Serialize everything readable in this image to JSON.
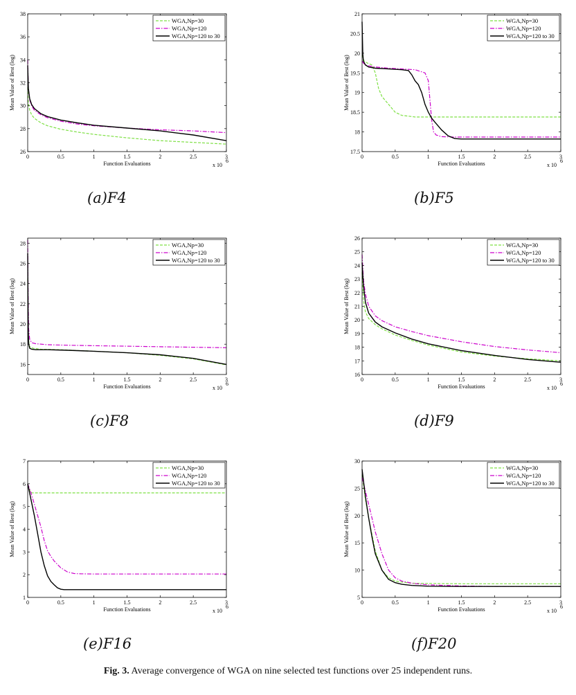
{
  "figure_caption": {
    "label": "Fig. 3.",
    "text": "Average convergence of WGA on nine selected test functions over 25 independent runs."
  },
  "colors": {
    "np30": "#7ee044",
    "np120": "#cc00cc",
    "np120to30": "#000000"
  },
  "chart_data": [
    {
      "id": "a",
      "type": "line",
      "caption": "(a)F4",
      "xlabel": "Function Evaluations",
      "ylabel": "Mean Value of Best (log)",
      "x_multiplier": "x 10",
      "x_exponent": "6",
      "xlim": [
        0,
        3
      ],
      "ylim": [
        26,
        38
      ],
      "xticks": [
        "0",
        "0.5",
        "1",
        "1.5",
        "2",
        "2.5",
        "3"
      ],
      "yticks": [
        "26",
        "28",
        "30",
        "32",
        "34",
        "36",
        "38"
      ],
      "legend": [
        "WGA,Np=30",
        "WGA,Np=120",
        "WGA,Np=120 to 30"
      ],
      "series": [
        {
          "name": "WGA,Np=30",
          "x": [
            0,
            0.01,
            0.03,
            0.06,
            0.1,
            0.2,
            0.3,
            0.5,
            0.75,
            1,
            1.5,
            2,
            2.5,
            3
          ],
          "y": [
            31.6,
            30.2,
            29.6,
            29.2,
            28.9,
            28.5,
            28.25,
            27.95,
            27.7,
            27.5,
            27.2,
            26.95,
            26.8,
            26.65
          ]
        },
        {
          "name": "WGA,Np=120",
          "x": [
            0,
            0.01,
            0.03,
            0.06,
            0.1,
            0.2,
            0.3,
            0.5,
            0.75,
            1,
            1.5,
            2,
            2.5,
            3
          ],
          "y": [
            34.0,
            31.5,
            30.5,
            30.0,
            29.6,
            29.2,
            28.95,
            28.65,
            28.4,
            28.25,
            28.05,
            27.9,
            27.8,
            27.65
          ]
        },
        {
          "name": "WGA,Np=120 to 30",
          "x": [
            0,
            0.01,
            0.03,
            0.06,
            0.1,
            0.2,
            0.3,
            0.5,
            0.75,
            1,
            1.5,
            2,
            2.5,
            3
          ],
          "y": [
            33.5,
            31.5,
            30.6,
            30.1,
            29.75,
            29.3,
            29.05,
            28.75,
            28.5,
            28.3,
            28.05,
            27.8,
            27.45,
            26.95
          ]
        }
      ]
    },
    {
      "id": "b",
      "type": "line",
      "caption": "(b)F5",
      "xlabel": "Function Evaluations",
      "ylabel": "Mean Value of Best (log)",
      "x_multiplier": "x 10",
      "x_exponent": "6",
      "xlim": [
        0,
        3
      ],
      "ylim": [
        17.5,
        21
      ],
      "xticks": [
        "0",
        "0.5",
        "1",
        "1.5",
        "2",
        "2.5",
        "3"
      ],
      "yticks": [
        "17.5",
        "18",
        "18.5",
        "19",
        "19.5",
        "20",
        "20.5",
        "21"
      ],
      "legend": [
        "WGA,Np=30",
        "WGA,Np=120",
        "WGA,Np=120 to 30"
      ],
      "series": [
        {
          "name": "WGA,Np=30",
          "x": [
            0,
            0.03,
            0.08,
            0.15,
            0.2,
            0.25,
            0.3,
            0.4,
            0.5,
            0.6,
            0.7,
            0.8,
            1.0,
            3
          ],
          "y": [
            19.95,
            19.8,
            19.75,
            19.7,
            19.5,
            19.1,
            18.9,
            18.7,
            18.5,
            18.42,
            18.4,
            18.38,
            18.38,
            18.38
          ]
        },
        {
          "name": "WGA,Np=120",
          "x": [
            0,
            0.02,
            0.05,
            0.1,
            0.2,
            0.4,
            0.6,
            0.8,
            0.95,
            1.0,
            1.02,
            1.05,
            1.08,
            1.12,
            1.2,
            1.4,
            3
          ],
          "y": [
            19.8,
            19.75,
            19.7,
            19.68,
            19.65,
            19.62,
            19.6,
            19.58,
            19.5,
            19.3,
            18.9,
            18.3,
            18.0,
            17.92,
            17.88,
            17.87,
            17.87
          ]
        },
        {
          "name": "WGA,Np=120 to 30",
          "x": [
            0,
            0.01,
            0.02,
            0.05,
            0.1,
            0.2,
            0.4,
            0.6,
            0.7,
            0.75,
            0.8,
            0.85,
            0.9,
            0.95,
            1.0,
            1.05,
            1.1,
            1.2,
            1.3,
            1.4,
            1.5,
            3
          ],
          "y": [
            20.8,
            20.0,
            19.8,
            19.7,
            19.65,
            19.62,
            19.6,
            19.58,
            19.56,
            19.45,
            19.3,
            19.2,
            19.0,
            18.7,
            18.5,
            18.35,
            18.25,
            18.05,
            17.9,
            17.83,
            17.82,
            17.82
          ]
        }
      ]
    },
    {
      "id": "c",
      "type": "line",
      "caption": "(c)F8",
      "xlabel": "Function Evaluations",
      "ylabel": "Mean Value of Best (log)",
      "x_multiplier": "x 10",
      "x_exponent": "6",
      "xlim": [
        0,
        3
      ],
      "ylim": [
        15,
        28.5
      ],
      "xticks": [
        "0",
        "0.5",
        "1",
        "1.5",
        "2",
        "2.5",
        "3"
      ],
      "yticks": [
        "16",
        "18",
        "20",
        "22",
        "24",
        "26",
        "28"
      ],
      "legend": [
        "WGA,Np=30",
        "WGA,Np=120",
        "WGA,Np=120 to 30"
      ],
      "series": [
        {
          "name": "WGA,Np=30",
          "x": [
            0,
            0.005,
            0.01,
            0.02,
            0.04,
            0.08,
            0.2,
            0.5,
            1,
            1.5,
            2,
            2.5,
            3
          ],
          "y": [
            24.5,
            21.0,
            19.0,
            17.9,
            17.7,
            17.6,
            17.5,
            17.45,
            17.3,
            17.15,
            16.9,
            16.55,
            15.95
          ]
        },
        {
          "name": "WGA,Np=120",
          "x": [
            0,
            0.004,
            0.008,
            0.015,
            0.03,
            0.06,
            0.12,
            0.3,
            0.6,
            1,
            1.5,
            2,
            2.5,
            3
          ],
          "y": [
            28.3,
            25.0,
            22.0,
            19.5,
            18.5,
            18.15,
            18.05,
            17.95,
            17.9,
            17.85,
            17.8,
            17.75,
            17.7,
            17.65
          ]
        },
        {
          "name": "WGA,Np=120 to 30",
          "x": [
            0,
            0.004,
            0.008,
            0.015,
            0.03,
            0.06,
            0.12,
            0.3,
            0.6,
            1,
            1.5,
            2,
            2.5,
            3
          ],
          "y": [
            27.0,
            23.0,
            19.5,
            18.0,
            17.6,
            17.5,
            17.45,
            17.45,
            17.4,
            17.3,
            17.15,
            16.95,
            16.6,
            16.0
          ]
        }
      ]
    },
    {
      "id": "d",
      "type": "line",
      "caption": "(d)F9",
      "xlabel": "Function Evaluations",
      "ylabel": "Mean Value of Best (log)",
      "x_multiplier": "x 10",
      "x_exponent": "6",
      "xlim": [
        0,
        3
      ],
      "ylim": [
        16,
        26
      ],
      "xticks": [
        "0",
        "0.5",
        "1",
        "1.5",
        "2",
        "2.5",
        "3"
      ],
      "yticks": [
        "16",
        "17",
        "18",
        "19",
        "20",
        "21",
        "22",
        "23",
        "24",
        "25",
        "26"
      ],
      "legend": [
        "WGA,Np=30",
        "WGA,Np=120",
        "WGA,Np=120 to 30"
      ],
      "series": [
        {
          "name": "WGA,Np=30",
          "x": [
            0,
            0.02,
            0.05,
            0.1,
            0.2,
            0.3,
            0.5,
            0.75,
            1,
            1.5,
            2,
            2.5,
            3
          ],
          "y": [
            23.5,
            21.5,
            20.6,
            20.1,
            19.65,
            19.35,
            18.9,
            18.5,
            18.15,
            17.65,
            17.35,
            17.15,
            17.0
          ]
        },
        {
          "name": "WGA,Np=120",
          "x": [
            0,
            0.02,
            0.05,
            0.1,
            0.2,
            0.3,
            0.5,
            0.75,
            1,
            1.5,
            2,
            2.5,
            3
          ],
          "y": [
            24.8,
            23.0,
            21.9,
            21.0,
            20.3,
            19.95,
            19.5,
            19.15,
            18.85,
            18.4,
            18.05,
            17.8,
            17.6
          ]
        },
        {
          "name": "WGA,Np=120 to 30",
          "x": [
            0,
            0.02,
            0.05,
            0.1,
            0.2,
            0.3,
            0.5,
            0.75,
            1,
            1.5,
            2,
            2.5,
            3
          ],
          "y": [
            24.2,
            22.6,
            21.3,
            20.5,
            19.85,
            19.5,
            19.05,
            18.6,
            18.25,
            17.75,
            17.4,
            17.1,
            16.9
          ]
        }
      ]
    },
    {
      "id": "e",
      "type": "line",
      "caption": "(e)F16",
      "xlabel": "Function Evaluations",
      "ylabel": "Mean Value of Best (log)",
      "x_multiplier": "x 10",
      "x_exponent": "6",
      "xlim": [
        0,
        3
      ],
      "ylim": [
        1,
        7
      ],
      "xticks": [
        "0",
        "0.5",
        "1",
        "1.5",
        "2",
        "2.5",
        "3"
      ],
      "yticks": [
        "1",
        "2",
        "3",
        "4",
        "5",
        "6",
        "7"
      ],
      "legend": [
        "WGA,Np=30",
        "WGA,Np=120",
        "WGA,Np=120 to 30"
      ],
      "series": [
        {
          "name": "WGA,Np=30",
          "x": [
            0,
            0.02,
            0.04,
            0.06,
            3
          ],
          "y": [
            5.95,
            5.8,
            5.65,
            5.6,
            5.6
          ]
        },
        {
          "name": "WGA,Np=120",
          "x": [
            0,
            0.05,
            0.1,
            0.15,
            0.2,
            0.25,
            0.3,
            0.35,
            0.4,
            0.5,
            0.6,
            0.7,
            0.8,
            1.0,
            3
          ],
          "y": [
            6.0,
            5.6,
            5.1,
            4.6,
            4.1,
            3.5,
            3.05,
            2.8,
            2.6,
            2.3,
            2.12,
            2.05,
            2.04,
            2.03,
            2.03
          ]
        },
        {
          "name": "WGA,Np=120 to 30",
          "x": [
            0,
            0.05,
            0.1,
            0.15,
            0.2,
            0.25,
            0.3,
            0.35,
            0.4,
            0.45,
            0.5,
            0.55,
            0.6,
            3
          ],
          "y": [
            6.0,
            5.3,
            4.6,
            3.8,
            3.0,
            2.4,
            1.95,
            1.7,
            1.55,
            1.42,
            1.36,
            1.34,
            1.34,
            1.34
          ]
        }
      ]
    },
    {
      "id": "f",
      "type": "line",
      "caption": "(f)F20",
      "xlabel": "Function Evaluations",
      "ylabel": "Mean Value of Best (log)",
      "x_multiplier": "x 10",
      "x_exponent": "6",
      "xlim": [
        0,
        3
      ],
      "ylim": [
        5,
        30
      ],
      "xticks": [
        "0",
        "0.5",
        "1",
        "1.5",
        "2",
        "2.5",
        "3"
      ],
      "yticks": [
        "5",
        "10",
        "15",
        "20",
        "25",
        "30"
      ],
      "legend": [
        "WGA,Np=30",
        "WGA,Np=120",
        "WGA,Np=120 to 30"
      ],
      "series": [
        {
          "name": "WGA,Np=30",
          "x": [
            0,
            0.05,
            0.1,
            0.15,
            0.2,
            0.3,
            0.4,
            0.5,
            0.6,
            0.75,
            1.0,
            1.5,
            2,
            3
          ],
          "y": [
            27.5,
            23.0,
            19.5,
            16.5,
            13.5,
            10.0,
            8.6,
            8.0,
            7.8,
            7.6,
            7.55,
            7.5,
            7.5,
            7.5
          ]
        },
        {
          "name": "WGA,Np=120",
          "x": [
            0,
            0.05,
            0.1,
            0.15,
            0.2,
            0.3,
            0.4,
            0.5,
            0.6,
            0.75,
            1.0,
            1.5,
            2,
            3
          ],
          "y": [
            27.0,
            24.5,
            22.0,
            19.5,
            17.0,
            13.0,
            10.0,
            8.6,
            8.0,
            7.6,
            7.3,
            7.1,
            7.0,
            7.0
          ]
        },
        {
          "name": "WGA,Np=120 to 30",
          "x": [
            0,
            0.05,
            0.1,
            0.15,
            0.2,
            0.3,
            0.4,
            0.5,
            0.6,
            0.75,
            1.0,
            1.5,
            2,
            3
          ],
          "y": [
            28.5,
            23.5,
            19.5,
            16.0,
            13.0,
            10.0,
            8.3,
            7.7,
            7.4,
            7.2,
            7.05,
            7.0,
            7.0,
            7.0
          ]
        }
      ]
    }
  ]
}
